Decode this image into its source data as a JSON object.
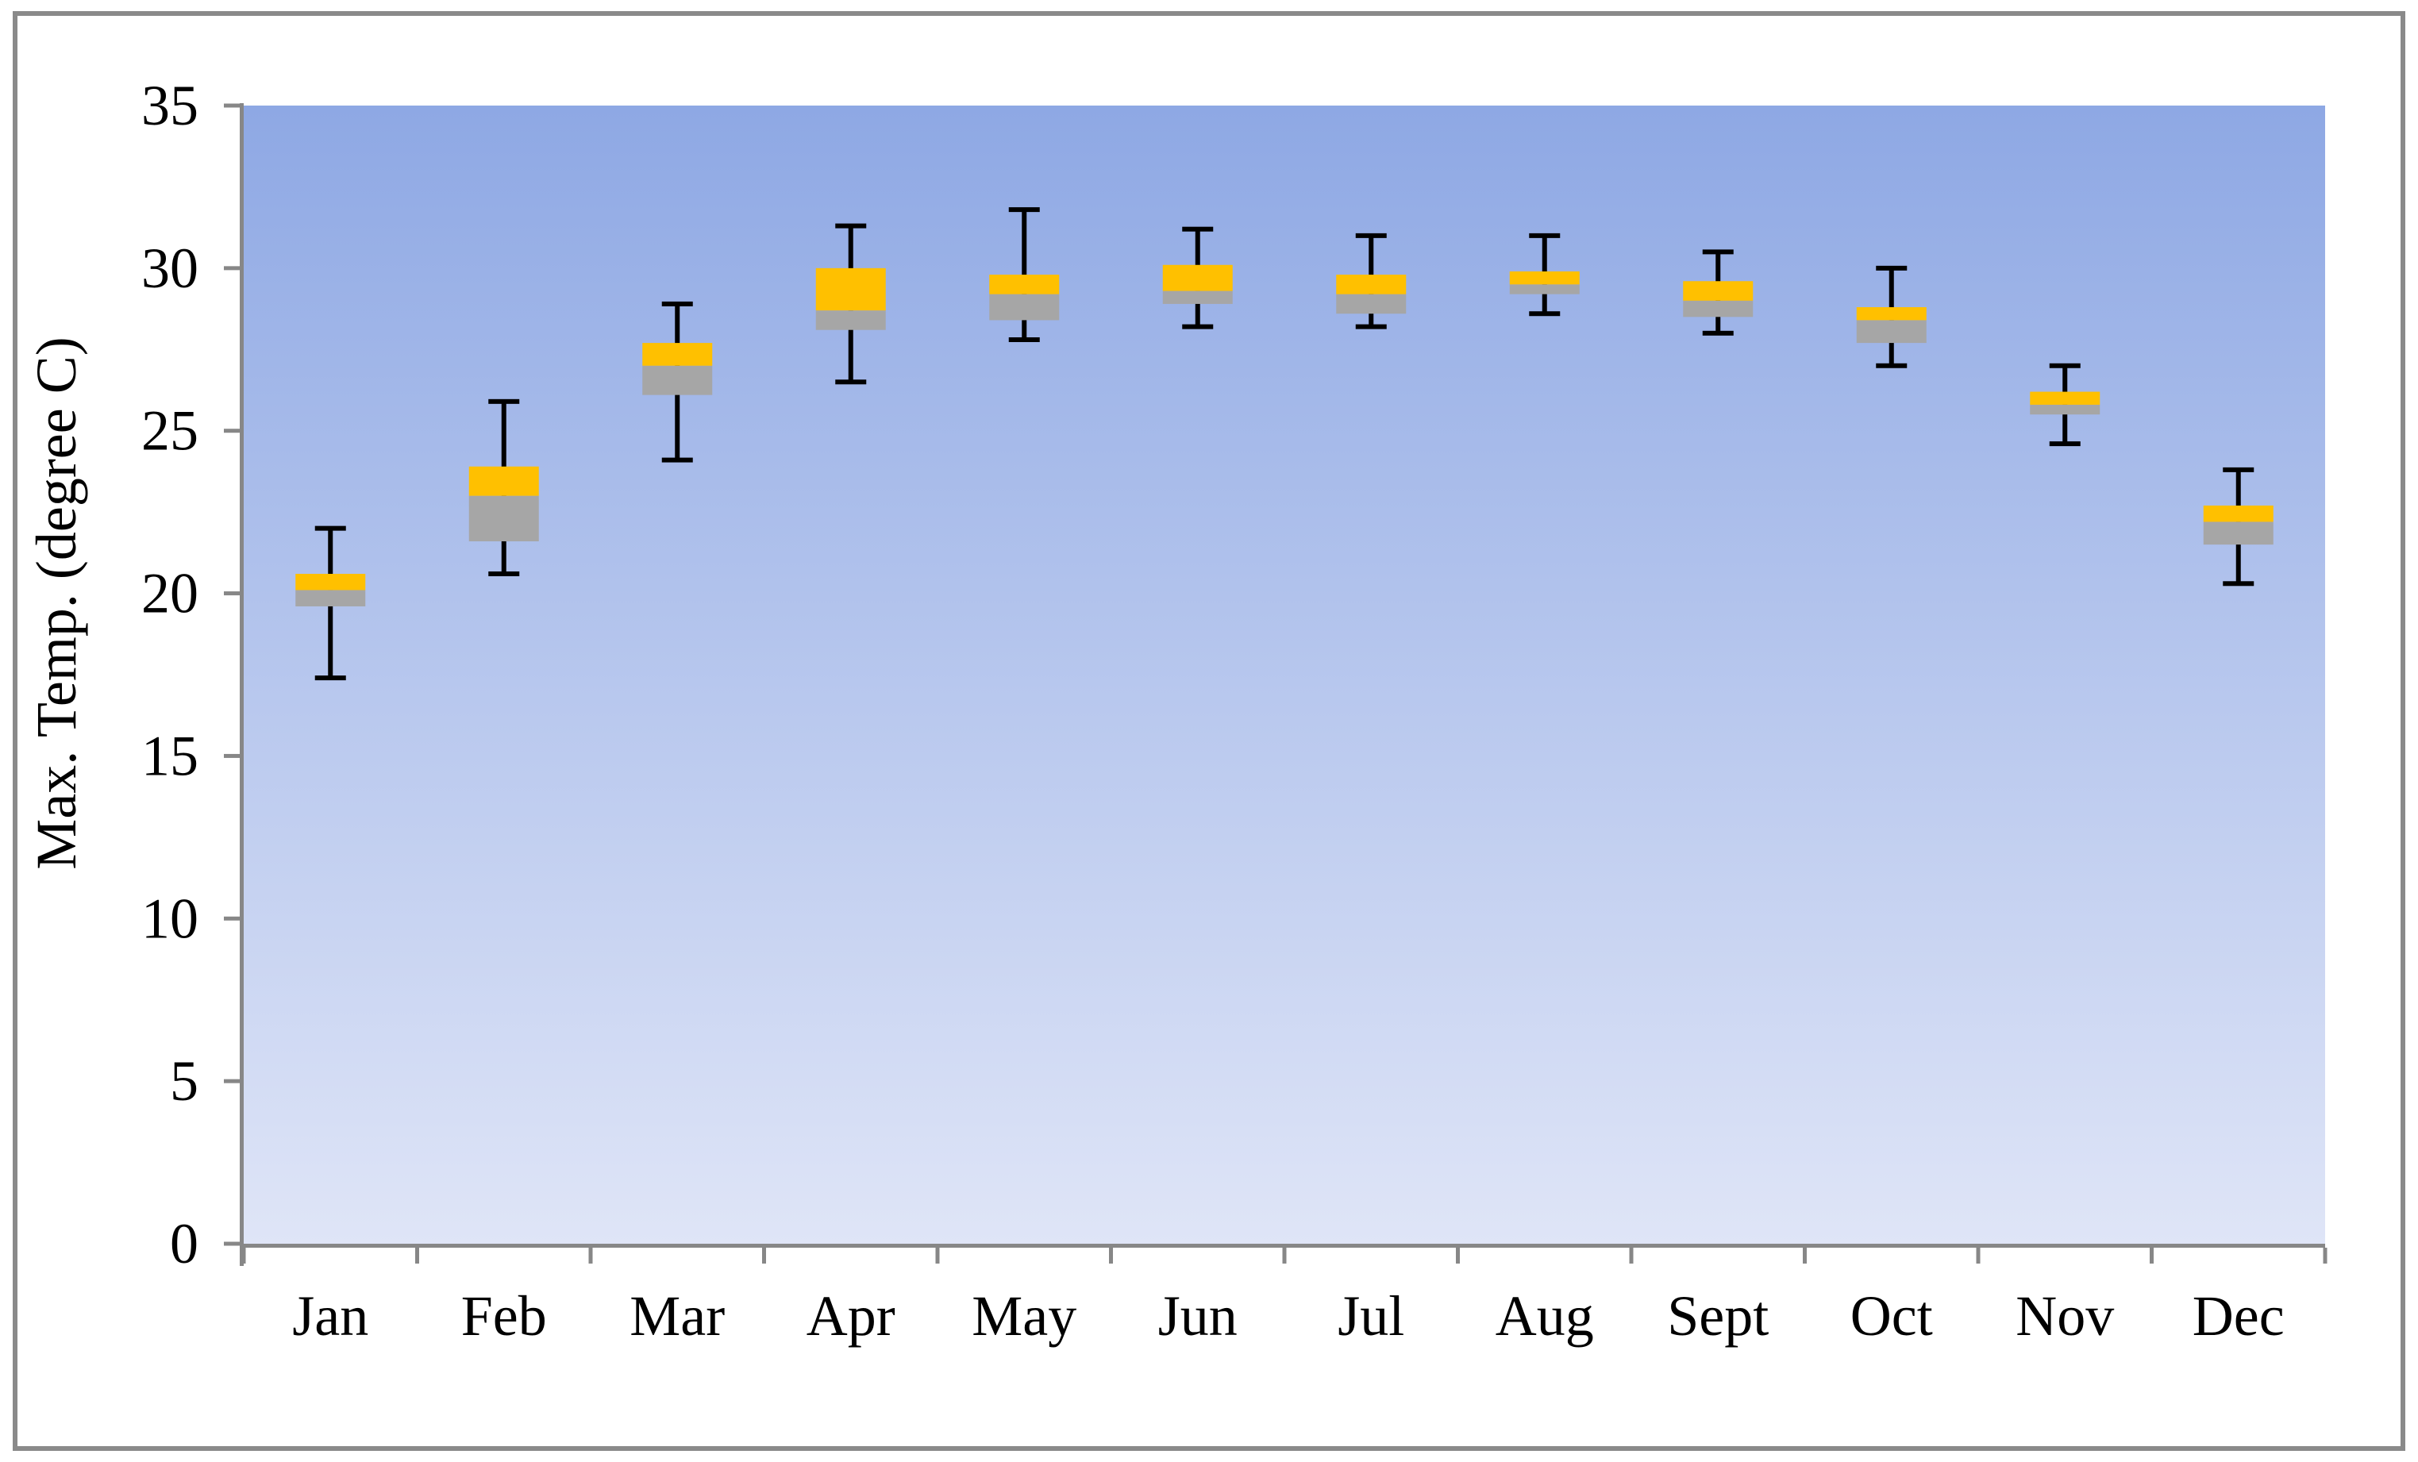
{
  "chart_data": {
    "type": "boxplot",
    "title": "",
    "xlabel": "",
    "ylabel": "Max. Temp. (degree C)",
    "categories": [
      "Jan",
      "Feb",
      "Mar",
      "Apr",
      "May",
      "Jun",
      "Jul",
      "Aug",
      "Sept",
      "Oct",
      "Nov",
      "Dec"
    ],
    "yticks": [
      0,
      5,
      10,
      15,
      20,
      25,
      30,
      35
    ],
    "ylim": [
      0,
      35
    ],
    "legend": "none",
    "grid": "off",
    "boxes": [
      {
        "month": "Jan",
        "whisker_low": 17.4,
        "q1": 19.6,
        "median": 20.1,
        "q3": 20.6,
        "whisker_high": 22.0
      },
      {
        "month": "Feb",
        "whisker_low": 20.6,
        "q1": 21.6,
        "median": 23.0,
        "q3": 23.9,
        "whisker_high": 25.9
      },
      {
        "month": "Mar",
        "whisker_low": 24.1,
        "q1": 26.1,
        "median": 27.0,
        "q3": 27.7,
        "whisker_high": 28.9
      },
      {
        "month": "Apr",
        "whisker_low": 26.5,
        "q1": 28.1,
        "median": 28.7,
        "q3": 30.0,
        "whisker_high": 31.3
      },
      {
        "month": "May",
        "whisker_low": 27.8,
        "q1": 28.4,
        "median": 29.2,
        "q3": 29.8,
        "whisker_high": 31.8
      },
      {
        "month": "Jun",
        "whisker_low": 28.2,
        "q1": 28.9,
        "median": 29.3,
        "q3": 30.1,
        "whisker_high": 31.2
      },
      {
        "month": "Jul",
        "whisker_low": 28.2,
        "q1": 28.6,
        "median": 29.2,
        "q3": 29.8,
        "whisker_high": 31.0
      },
      {
        "month": "Aug",
        "whisker_low": 28.6,
        "q1": 29.2,
        "median": 29.5,
        "q3": 29.9,
        "whisker_high": 31.0
      },
      {
        "month": "Sept",
        "whisker_low": 28.0,
        "q1": 28.5,
        "median": 29.0,
        "q3": 29.6,
        "whisker_high": 30.5
      },
      {
        "month": "Oct",
        "whisker_low": 27.0,
        "q1": 27.7,
        "median": 28.4,
        "q3": 28.8,
        "whisker_high": 30.0
      },
      {
        "month": "Nov",
        "whisker_low": 24.6,
        "q1": 25.5,
        "median": 25.8,
        "q3": 26.2,
        "whisker_high": 27.0
      },
      {
        "month": "Dec",
        "whisker_low": 20.3,
        "q1": 21.5,
        "median": 22.2,
        "q3": 22.7,
        "whisker_high": 23.8
      }
    ],
    "colors": {
      "box_upper": "#FFC000",
      "box_lower": "#A6A6A6",
      "whisker": "#000000",
      "axis": "#878787",
      "plot_bg_top": "#8EA8E4",
      "plot_bg_bottom": "#DFE5F7",
      "frame_border": "#8a8a8a",
      "label_text": "#000000"
    }
  }
}
